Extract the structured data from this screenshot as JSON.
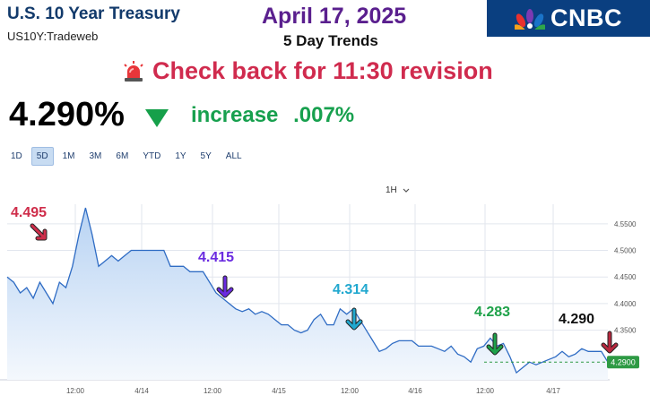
{
  "header": {
    "title": "U.S. 10 Year Treasury",
    "subtitle": "US10Y:Tradeweb",
    "date": "April 17, 2025",
    "trends": "5 Day Trends",
    "logo_text": "CNBC",
    "alert": "Check back for 11:30 revision"
  },
  "quote": {
    "price": "4.290%",
    "direction": "down",
    "change_label": "increase",
    "change_value": ".007%"
  },
  "range_tabs": [
    {
      "label": "1D",
      "active": false
    },
    {
      "label": "5D",
      "active": true
    },
    {
      "label": "1M",
      "active": false
    },
    {
      "label": "3M",
      "active": false
    },
    {
      "label": "6M",
      "active": false
    },
    {
      "label": "YTD",
      "active": false
    },
    {
      "label": "1Y",
      "active": false
    },
    {
      "label": "5Y",
      "active": false
    },
    {
      "label": "ALL",
      "active": false
    }
  ],
  "interval": {
    "label": "1H",
    "icon": "chevron-down-icon"
  },
  "colors": {
    "line": "#2f6cc4",
    "fill_top": "#b8d3f3",
    "fill_bottom": "#f4f8fd",
    "grid": "#e2e6ee",
    "current_badge": "#2e9a44"
  },
  "chart_data": {
    "type": "area",
    "x_ticks": [
      "12:00",
      "4/14",
      "12:00",
      "4/15",
      "12:00",
      "4/16",
      "12:00",
      "4/17"
    ],
    "y_ticks": [
      "4.5500",
      "4.5000",
      "4.4500",
      "4.4000",
      "4.3500"
    ],
    "ylim": [
      4.26,
      4.58
    ],
    "current_value": "4.2900",
    "series": [
      {
        "values": [
          4.45,
          4.44,
          4.42,
          4.43,
          4.41,
          4.44,
          4.42,
          4.4,
          4.44,
          4.43,
          4.47,
          4.53,
          4.58,
          4.53,
          4.47,
          4.48,
          4.49,
          4.48,
          4.49,
          4.5,
          4.5,
          4.5,
          4.5,
          4.5,
          4.5,
          4.47,
          4.47,
          4.47,
          4.46,
          4.46,
          4.46,
          4.44,
          4.42,
          4.41,
          4.4,
          4.39,
          4.385,
          4.39,
          4.38,
          4.385,
          4.38,
          4.37,
          4.36,
          4.36,
          4.35,
          4.345,
          4.35,
          4.37,
          4.38,
          4.36,
          4.36,
          4.39,
          4.38,
          4.39,
          4.37,
          4.35,
          4.33,
          4.31,
          4.315,
          4.325,
          4.33,
          4.33,
          4.33,
          4.32,
          4.32,
          4.32,
          4.315,
          4.31,
          4.32,
          4.305,
          4.3,
          4.29,
          4.315,
          4.32,
          4.335,
          4.32,
          4.325,
          4.3,
          4.27,
          4.28,
          4.29,
          4.285,
          4.29,
          4.295,
          4.3,
          4.31,
          4.3,
          4.305,
          4.315,
          4.31,
          4.31,
          4.31,
          4.29
        ]
      }
    ],
    "annotations": [
      {
        "text": "4.495",
        "color": "#cf2d4a",
        "arrow": "down-right"
      },
      {
        "text": "4.415",
        "color": "#6a2be0",
        "arrow": "down"
      },
      {
        "text": "4.314",
        "color": "#21a8cf",
        "arrow": "down"
      },
      {
        "text": "4.283",
        "color": "#1fa24a",
        "arrow": "down"
      },
      {
        "text": "4.290",
        "color": "#111111",
        "arrow": "down"
      }
    ]
  }
}
